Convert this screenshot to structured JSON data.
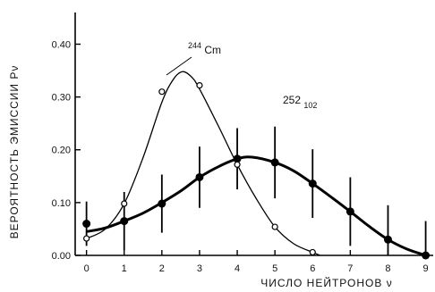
{
  "chart_data": {
    "type": "line",
    "title": "",
    "xlabel": "ЧИСЛО НЕЙТРОНОВ ν",
    "ylabel": "ВЕРОЯТНОСТЬ ЭМИССИИ Pν",
    "xlim": [
      -0.3,
      9.2
    ],
    "ylim": [
      0,
      0.46
    ],
    "xticks": [
      0,
      1,
      2,
      3,
      4,
      5,
      6,
      7,
      8,
      9
    ],
    "yticks": [
      0.0,
      0.1,
      0.2,
      0.3,
      0.4
    ],
    "ytick_labels": [
      "0.00",
      "0.10",
      "0.20",
      "0.30",
      "0.40"
    ],
    "grid": false,
    "series": [
      {
        "name": "244Cm",
        "label_mass": "244",
        "label_element": "Cm",
        "marker": "open-circle",
        "x": [
          0,
          1,
          2,
          3,
          4,
          5,
          6
        ],
        "y": [
          0.032,
          0.098,
          0.31,
          0.322,
          0.172,
          0.054,
          0.006
        ],
        "curve": [
          [
            0,
            0.032
          ],
          [
            0.5,
            0.05
          ],
          [
            1,
            0.098
          ],
          [
            1.5,
            0.185
          ],
          [
            2,
            0.29
          ],
          [
            2.3,
            0.333
          ],
          [
            2.55,
            0.348
          ],
          [
            2.8,
            0.337
          ],
          [
            3,
            0.315
          ],
          [
            3.5,
            0.245
          ],
          [
            4,
            0.172
          ],
          [
            4.5,
            0.108
          ],
          [
            5,
            0.054
          ],
          [
            5.5,
            0.022
          ],
          [
            6,
            0.006
          ],
          [
            6.2,
            0.0
          ]
        ]
      },
      {
        "name": "252102",
        "label_mass": "252",
        "label_element": "102",
        "marker": "filled-circle",
        "x": [
          0,
          1,
          2,
          3,
          4,
          5,
          6,
          7,
          8,
          9
        ],
        "y": [
          0.06,
          0.065,
          0.098,
          0.148,
          0.183,
          0.176,
          0.136,
          0.083,
          0.03,
          0.0
        ],
        "err": [
          0.042,
          0.055,
          0.055,
          0.058,
          0.058,
          0.068,
          0.065,
          0.065,
          0.065,
          0.065
        ],
        "curve": [
          [
            0,
            0.045
          ],
          [
            0.5,
            0.052
          ],
          [
            1,
            0.065
          ],
          [
            1.5,
            0.08
          ],
          [
            2,
            0.1
          ],
          [
            2.5,
            0.122
          ],
          [
            3,
            0.148
          ],
          [
            3.5,
            0.168
          ],
          [
            4,
            0.183
          ],
          [
            4.4,
            0.186
          ],
          [
            5,
            0.176
          ],
          [
            5.5,
            0.16
          ],
          [
            6,
            0.136
          ],
          [
            6.5,
            0.11
          ],
          [
            7,
            0.083
          ],
          [
            7.5,
            0.055
          ],
          [
            8,
            0.03
          ],
          [
            8.5,
            0.012
          ],
          [
            9,
            0.0
          ]
        ]
      }
    ]
  }
}
